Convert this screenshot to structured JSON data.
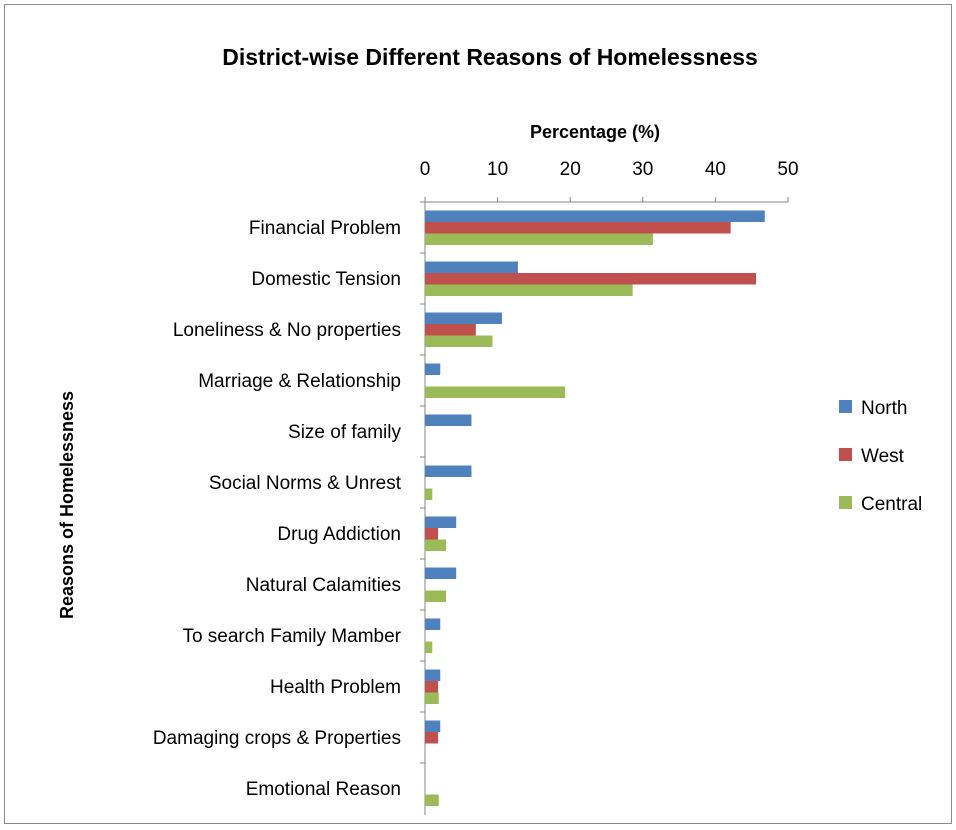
{
  "chart_data": {
    "type": "bar",
    "orientation": "horizontal",
    "title": "District-wise Different Reasons of Homelessness",
    "xlabel": "Percentage (%)",
    "ylabel": "Reasons of Homelessness",
    "xlim": [
      0,
      50
    ],
    "xticks": [
      0,
      10,
      20,
      30,
      40,
      50
    ],
    "x_axis_position": "top",
    "grid": false,
    "legend_position": "right",
    "categories": [
      "Financial Problem",
      "Domestic Tension",
      "Loneliness & No properties",
      "Marriage & Relationship",
      "Size of family",
      "Social Norms & Unrest",
      "Drug Addiction",
      "Natural Calamities",
      "To search Family Mamber",
      "Health Problem",
      "Damaging crops & Properties",
      "Emotional Reason"
    ],
    "series": [
      {
        "name": "North",
        "color": "#4f81bd",
        "values": [
          46.8,
          12.8,
          10.6,
          2.1,
          6.4,
          6.4,
          4.3,
          4.3,
          2.1,
          2.1,
          2.1,
          0
        ]
      },
      {
        "name": "West",
        "color": "#c0504d",
        "values": [
          42.1,
          45.6,
          7.0,
          0,
          0,
          0,
          1.8,
          0,
          0,
          1.8,
          1.8,
          0
        ]
      },
      {
        "name": "Central",
        "color": "#9bbb59",
        "values": [
          31.4,
          28.6,
          9.3,
          19.3,
          0,
          1.0,
          2.9,
          2.9,
          1.0,
          1.9,
          0,
          1.9
        ]
      }
    ]
  }
}
